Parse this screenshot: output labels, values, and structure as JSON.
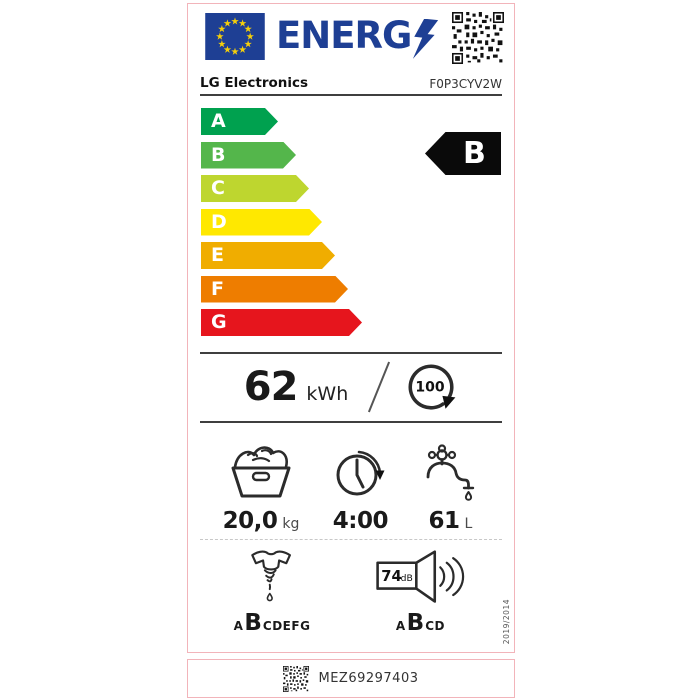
{
  "label": {
    "header": {
      "logo_text": "ENERG",
      "supplier": "LG Electronics",
      "model": "F0P3CYV2W"
    },
    "rating": {
      "selected": "B"
    },
    "rating_scale": [
      {
        "letter": "A",
        "color": "#00a14f"
      },
      {
        "letter": "B",
        "color": "#54b64b"
      },
      {
        "letter": "C",
        "color": "#bed62f"
      },
      {
        "letter": "D",
        "color": "#ffe800"
      },
      {
        "letter": "E",
        "color": "#f0ad00"
      },
      {
        "letter": "F",
        "color": "#ee7d00"
      },
      {
        "letter": "G",
        "color": "#e6151d"
      }
    ],
    "energy": {
      "value": "62",
      "unit": "kWh",
      "cycles": "100"
    },
    "specs": {
      "capacity": {
        "value": "20,0",
        "unit": "kg"
      },
      "duration": {
        "value": "4:00"
      },
      "water": {
        "value": "61",
        "unit": "L"
      }
    },
    "classes": {
      "spin": {
        "prefix": "A",
        "selected": "B",
        "suffix": "CDEFG"
      },
      "noise": {
        "db": "74",
        "db_unit": "dB",
        "prefix": "A",
        "selected": "B",
        "suffix": "CD"
      }
    },
    "regulation": "2019/2014"
  },
  "footer": {
    "code": "MEZ69297403"
  },
  "colors": {
    "eu_blue": "#1e3f94",
    "star_yellow": "#f5cf0a",
    "border_pink": "#f2b4ba",
    "indicator_black": "#0a0a0a"
  }
}
